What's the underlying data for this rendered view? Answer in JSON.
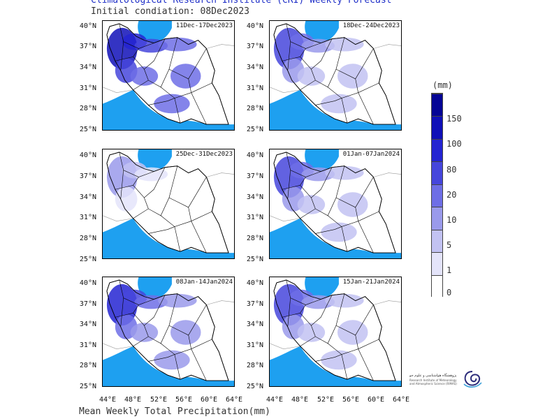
{
  "header": {
    "title": "Climatological Research Institute (CRI) Weekly Forecast",
    "subtitle": "Initial condiation: 08Dec2023"
  },
  "footer": "Mean Weekly Total Precipitation(mm)",
  "panels": [
    {
      "label": "11Dec-17Dec2023",
      "intensity": 5
    },
    {
      "label": "18Dec-24Dec2023",
      "intensity": 3
    },
    {
      "label": "25Dec-31Dec2023",
      "intensity": 1
    },
    {
      "label": "01Jan-07Jan2024",
      "intensity": 3
    },
    {
      "label": "08Jan-14Jan2024",
      "intensity": 4
    },
    {
      "label": "15Jan-21Jan2024",
      "intensity": 3
    }
  ],
  "lat_ticks": [
    "40°N",
    "37°N",
    "34°N",
    "31°N",
    "28°N",
    "25°N"
  ],
  "lon_ticks": [
    "44°E",
    "48°E",
    "52°E",
    "56°E",
    "60°E",
    "64°E"
  ],
  "colorbar": {
    "unit": "(mm)",
    "labels": [
      "0",
      "1",
      "5",
      "10",
      "20",
      "80",
      "100",
      "150"
    ],
    "colors": [
      "#ffffff",
      "#e4e4fa",
      "#c2c2f2",
      "#9a9aeb",
      "#6e6ee6",
      "#4646dc",
      "#2424d2",
      "#1010b8",
      "#050596"
    ]
  },
  "logo": {
    "name": "پژوهشگاه هواشناسی و علوم جو",
    "subname": "Research Institute of Meteorology and Atmospheric Science (RIMAS)"
  },
  "colors": {
    "water": "#1ea0f0",
    "header_text": "#2030c8"
  }
}
